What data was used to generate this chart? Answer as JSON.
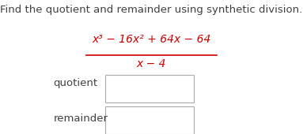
{
  "title_text": "Find the quotient and remainder using synthetic division.",
  "title_color": "#404040",
  "title_fontsize": 9.5,
  "numerator": "x³ − 16x² + 64x − 64",
  "denominator": "x − 4",
  "math_color": "#cc0000",
  "math_fontsize": 10,
  "label_quotient": "quotient",
  "label_remainder": "remainder",
  "label_color": "#404040",
  "label_fontsize": 9.5,
  "box_facecolor": "#ffffff",
  "box_edgecolor": "#aaaaaa",
  "background_color": "#ffffff"
}
